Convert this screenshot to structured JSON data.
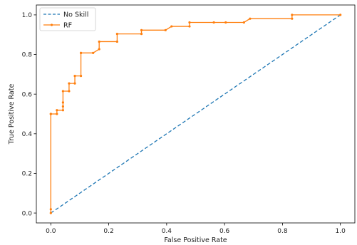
{
  "chart_data": {
    "type": "line",
    "xlabel": "False Positive Rate",
    "ylabel": "True Positive Rate",
    "xlim": [
      -0.05,
      1.05
    ],
    "ylim": [
      -0.05,
      1.05
    ],
    "xticks": [
      0.0,
      0.2,
      0.4,
      0.6,
      0.8,
      1.0
    ],
    "yticks": [
      0.0,
      0.2,
      0.4,
      0.6,
      0.8,
      1.0
    ],
    "xtick_labels": [
      "0.0",
      "0.2",
      "0.4",
      "0.6",
      "0.8",
      "1.0"
    ],
    "ytick_labels": [
      "0.0",
      "0.2",
      "0.4",
      "0.6",
      "0.8",
      "1.0"
    ],
    "grid": false,
    "legend_position": "top-left",
    "series": [
      {
        "name": "No Skill",
        "style": "dashed",
        "color": "#1f77b4",
        "x": [
          0,
          1
        ],
        "y": [
          0,
          1
        ]
      },
      {
        "name": "RF",
        "style": "solid-marker",
        "color": "#ff7f0e",
        "x": [
          0.0,
          0.0,
          0.0,
          0.0,
          0.021,
          0.021,
          0.042,
          0.042,
          0.042,
          0.042,
          0.063,
          0.063,
          0.083,
          0.083,
          0.104,
          0.104,
          0.104,
          0.146,
          0.167,
          0.167,
          0.229,
          0.229,
          0.313,
          0.313,
          0.396,
          0.417,
          0.479,
          0.479,
          0.563,
          0.604,
          0.667,
          0.688,
          0.833,
          0.833,
          1.0
        ],
        "y": [
          0.0,
          0.019,
          0.5,
          0.5,
          0.5,
          0.519,
          0.519,
          0.538,
          0.558,
          0.615,
          0.615,
          0.654,
          0.654,
          0.692,
          0.692,
          0.808,
          0.808,
          0.808,
          0.827,
          0.865,
          0.865,
          0.904,
          0.904,
          0.923,
          0.923,
          0.942,
          0.942,
          0.962,
          0.962,
          0.962,
          0.962,
          0.981,
          0.981,
          1.0,
          1.0
        ]
      }
    ]
  }
}
